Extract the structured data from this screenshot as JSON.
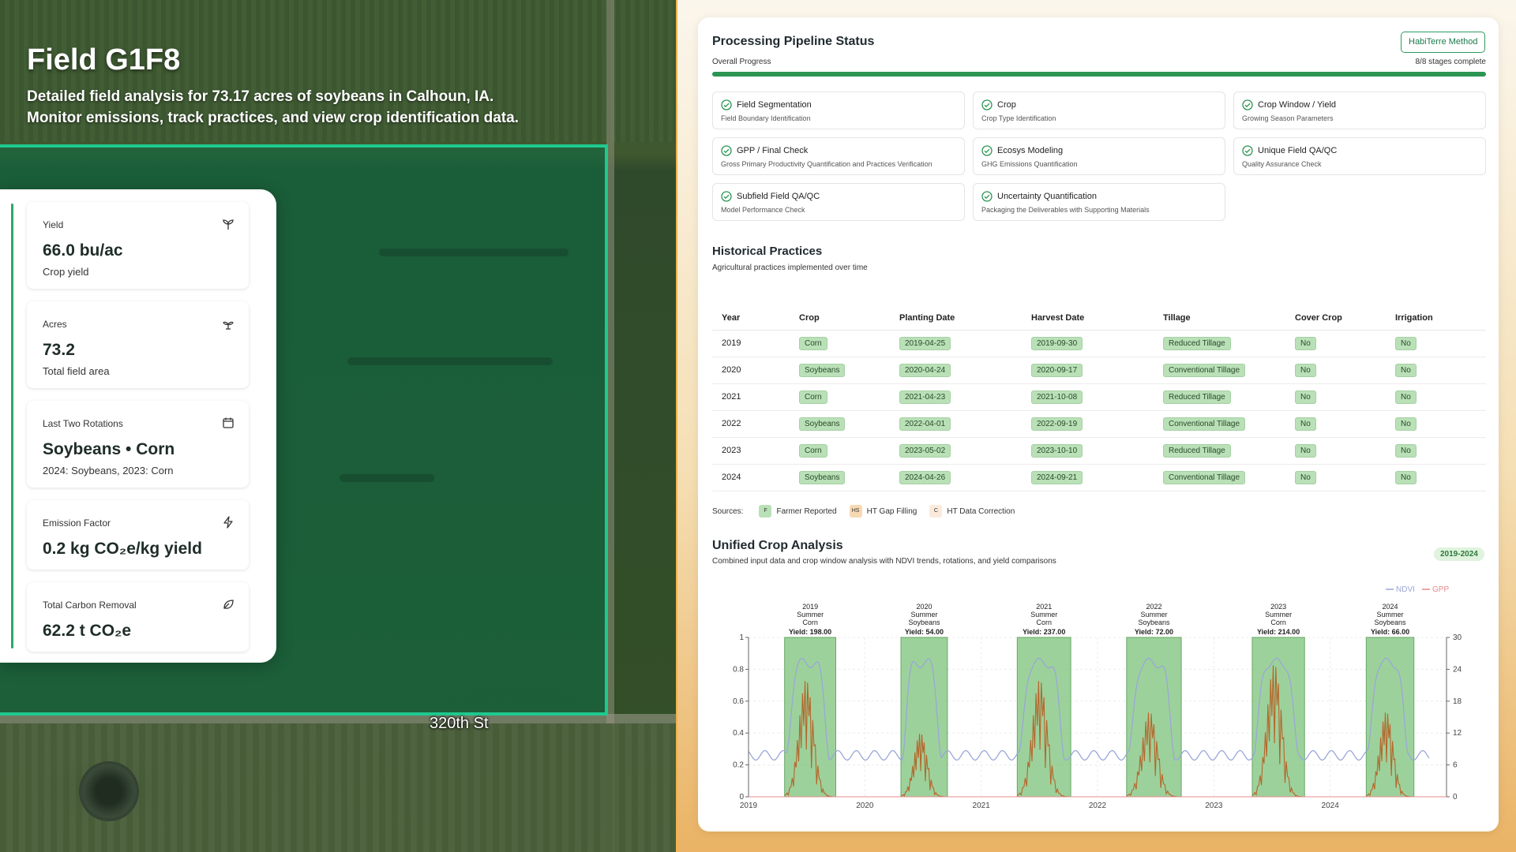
{
  "field": {
    "title": "Field G1F8",
    "description_line1": "Detailed field analysis for 73.17 acres of soybeans in Calhoun, IA.",
    "description_line2": "Monitor emissions, track practices, and view crop identification data.",
    "road_label": "320th St"
  },
  "stats": [
    {
      "label": "Yield",
      "value": "66.0 bu/ac",
      "sub": "Crop yield",
      "icon": "sprout-icon"
    },
    {
      "label": "Acres",
      "value": "73.2",
      "sub": "Total field area",
      "icon": "plant-icon"
    },
    {
      "label": "Last Two Rotations",
      "value": "Soybeans • Corn",
      "sub": "2024: Soybeans, 2023: Corn",
      "icon": "calendar-icon"
    },
    {
      "label": "Emission Factor",
      "value": "0.2 kg CO₂e/kg yield",
      "sub": "",
      "icon": "lightning-icon"
    },
    {
      "label": "Total Carbon Removal",
      "value": "62.2 t CO₂e",
      "sub": "",
      "icon": "leaf-icon"
    }
  ],
  "pipeline": {
    "title": "Processing Pipeline Status",
    "method_button": "HabiTerre Method",
    "overall_label": "Overall Progress",
    "stages_complete": "8/8 stages complete",
    "progress": 1.0,
    "stages": [
      {
        "name": "Field Segmentation",
        "desc": "Field Boundary Identification"
      },
      {
        "name": "Crop",
        "desc": "Crop Type Identification"
      },
      {
        "name": "Crop Window / Yield",
        "desc": "Growing Season Parameters"
      },
      {
        "name": "GPP / Final Check",
        "desc": "Gross Primary Productivity Quantification and Practices Verification"
      },
      {
        "name": "Ecosys Modeling",
        "desc": "GHG Emissions Quantification"
      },
      {
        "name": "Unique Field QA/QC",
        "desc": "Quality Assurance Check"
      },
      {
        "name": "Subfield Field QA/QC",
        "desc": "Model Performance Check"
      },
      {
        "name": "Uncertainty Quantification",
        "desc": "Packaging the Deliverables with Supporting Materials"
      }
    ]
  },
  "history": {
    "title": "Historical Practices",
    "subtitle": "Agricultural practices implemented over time",
    "columns": [
      "Year",
      "Crop",
      "Planting Date",
      "Harvest Date",
      "Tillage",
      "Cover Crop",
      "Irrigation"
    ],
    "rows": [
      [
        "2019",
        "Corn",
        "2019-04-25",
        "2019-09-30",
        "Reduced Tillage",
        "No",
        "No"
      ],
      [
        "2020",
        "Soybeans",
        "2020-04-24",
        "2020-09-17",
        "Conventional Tillage",
        "No",
        "No"
      ],
      [
        "2021",
        "Corn",
        "2021-04-23",
        "2021-10-08",
        "Reduced Tillage",
        "No",
        "No"
      ],
      [
        "2022",
        "Soybeans",
        "2022-04-01",
        "2022-09-19",
        "Conventional Tillage",
        "No",
        "No"
      ],
      [
        "2023",
        "Corn",
        "2023-05-02",
        "2023-10-10",
        "Reduced Tillage",
        "No",
        "No"
      ],
      [
        "2024",
        "Soybeans",
        "2024-04-26",
        "2024-09-21",
        "Conventional Tillage",
        "No",
        "No"
      ]
    ],
    "sources_label": "Sources:",
    "sources": [
      {
        "abbr": "F",
        "label": "Farmer Reported",
        "color": "#b9e0b7"
      },
      {
        "abbr": "HS",
        "label": "HT Gap Filling",
        "color": "#f7d9b2"
      },
      {
        "abbr": "C",
        "label": "HT Data Correction",
        "color": "#fbeadb"
      }
    ]
  },
  "unified": {
    "title": "Unified Crop Analysis",
    "subtitle": "Combined input data and crop window analysis with NDVI trends, rotations, and yield comparisons",
    "badge": "2019-2024"
  },
  "chart_data": {
    "type": "line",
    "legend": [
      {
        "name": "NDVI",
        "color": "#9aa7d8"
      },
      {
        "name": "GPP",
        "color": "#e88b8b"
      }
    ],
    "x_range": [
      2019.0,
      2025.0
    ],
    "x_ticks": [
      "2019",
      "2020",
      "2021",
      "2022",
      "2023",
      "2024"
    ],
    "y_left_range": [
      0,
      1
    ],
    "y_left_ticks": [
      "0",
      "0.2",
      "0.4",
      "0.6",
      "0.8",
      "1"
    ],
    "y_right_range": [
      0,
      30
    ],
    "y_right_ticks": [
      "0",
      "6",
      "12",
      "18",
      "24",
      "30"
    ],
    "windows": [
      {
        "year": "2019",
        "season": "Summer",
        "crop": "Corn",
        "yield": "Yield: 198.00",
        "start": 2019.31,
        "end": 2019.75,
        "gpp_peak": 22
      },
      {
        "year": "2020",
        "season": "Summer",
        "crop": "Soybeans",
        "yield": "Yield: 54.00",
        "start": 2020.31,
        "end": 2020.71,
        "gpp_peak": 12
      },
      {
        "year": "2021",
        "season": "Summer",
        "crop": "Corn",
        "yield": "Yield: 237.00",
        "start": 2021.31,
        "end": 2021.77,
        "gpp_peak": 22
      },
      {
        "year": "2022",
        "season": "Summer",
        "crop": "Soybeans",
        "yield": "Yield: 72.00",
        "start": 2022.25,
        "end": 2022.72,
        "gpp_peak": 16
      },
      {
        "year": "2023",
        "season": "Summer",
        "crop": "Corn",
        "yield": "Yield: 214.00",
        "start": 2023.33,
        "end": 2023.78,
        "gpp_peak": 25
      },
      {
        "year": "2024",
        "season": "Summer",
        "crop": "Soybeans",
        "yield": "Yield: 66.00",
        "start": 2024.31,
        "end": 2024.72,
        "gpp_peak": 16
      }
    ]
  }
}
